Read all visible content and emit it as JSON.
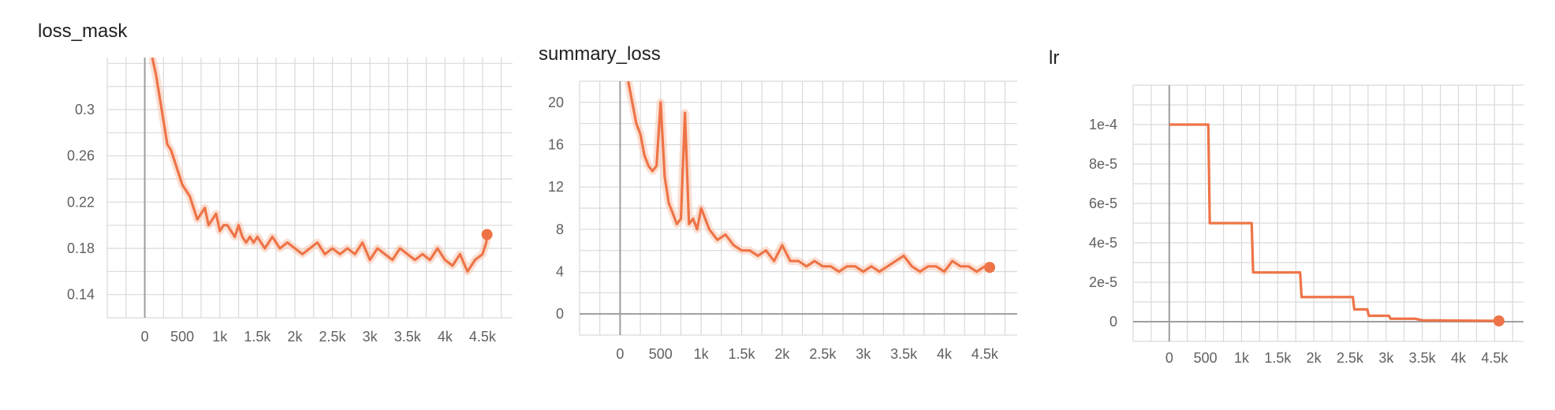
{
  "colors": {
    "line": "#ee7447",
    "line_light": "#f8c7b1",
    "grid": "#d9d9d9",
    "axis": "#9e9e9e",
    "tick_text": "#616161"
  },
  "chart_data": [
    {
      "type": "line",
      "title": "loss_mask",
      "xlabel": "",
      "ylabel": "",
      "xlim": [
        -500,
        4900
      ],
      "ylim": [
        0.12,
        0.345
      ],
      "x_ticks": [
        0,
        500,
        1000,
        1500,
        2000,
        2500,
        3000,
        3500,
        4000,
        4500
      ],
      "x_tick_labels": [
        "0",
        "500",
        "1k",
        "1.5k",
        "2k",
        "2.5k",
        "3k",
        "3.5k",
        "4k",
        "4.5k"
      ],
      "y_ticks": [
        0.14,
        0.18,
        0.22,
        0.26,
        0.3
      ],
      "y_tick_labels": [
        "0.14",
        "0.18",
        "0.22",
        "0.26",
        "0.3"
      ],
      "grid": true,
      "series": [
        {
          "x": [
            100,
            150,
            200,
            250,
            300,
            350,
            400,
            450,
            500,
            550,
            600,
            650,
            700,
            750,
            800,
            850,
            900,
            950,
            1000,
            1050,
            1100,
            1150,
            1200,
            1250,
            1300,
            1350,
            1400,
            1450,
            1500,
            1600,
            1700,
            1800,
            1900,
            2000,
            2100,
            2200,
            2300,
            2400,
            2500,
            2600,
            2700,
            2800,
            2900,
            3000,
            3100,
            3200,
            3300,
            3400,
            3500,
            3600,
            3700,
            3800,
            3900,
            4000,
            4100,
            4200,
            4300,
            4400,
            4500,
            4550,
            4560
          ],
          "values": [
            0.345,
            0.33,
            0.31,
            0.29,
            0.27,
            0.265,
            0.255,
            0.245,
            0.235,
            0.23,
            0.225,
            0.215,
            0.205,
            0.21,
            0.215,
            0.2,
            0.205,
            0.21,
            0.195,
            0.2,
            0.2,
            0.195,
            0.19,
            0.2,
            0.19,
            0.185,
            0.19,
            0.185,
            0.19,
            0.18,
            0.19,
            0.18,
            0.185,
            0.18,
            0.175,
            0.18,
            0.185,
            0.175,
            0.18,
            0.175,
            0.18,
            0.175,
            0.185,
            0.17,
            0.18,
            0.175,
            0.17,
            0.18,
            0.175,
            0.17,
            0.175,
            0.17,
            0.18,
            0.17,
            0.165,
            0.175,
            0.16,
            0.17,
            0.175,
            0.185,
            0.192
          ]
        }
      ]
    },
    {
      "type": "line",
      "title": "summary_loss",
      "xlabel": "",
      "ylabel": "",
      "xlim": [
        -500,
        4900
      ],
      "ylim": [
        -2,
        22
      ],
      "x_ticks": [
        0,
        500,
        1000,
        1500,
        2000,
        2500,
        3000,
        3500,
        4000,
        4500
      ],
      "x_tick_labels": [
        "0",
        "500",
        "1k",
        "1.5k",
        "2k",
        "2.5k",
        "3k",
        "3.5k",
        "4k",
        "4.5k"
      ],
      "y_ticks": [
        0,
        4,
        8,
        12,
        16,
        20
      ],
      "y_tick_labels": [
        "0",
        "4",
        "8",
        "12",
        "16",
        "20"
      ],
      "grid": true,
      "series": [
        {
          "x": [
            100,
            150,
            200,
            250,
            300,
            350,
            400,
            450,
            500,
            550,
            600,
            650,
            700,
            750,
            800,
            850,
            900,
            950,
            1000,
            1100,
            1200,
            1300,
            1400,
            1500,
            1600,
            1700,
            1800,
            1900,
            2000,
            2100,
            2200,
            2300,
            2400,
            2500,
            2600,
            2700,
            2800,
            2900,
            3000,
            3100,
            3200,
            3300,
            3400,
            3500,
            3600,
            3700,
            3800,
            3900,
            4000,
            4100,
            4200,
            4300,
            4400,
            4500,
            4560
          ],
          "values": [
            22,
            20,
            18,
            17,
            15,
            14,
            13.5,
            14,
            20,
            13,
            10.5,
            9.5,
            8.5,
            9,
            19,
            8.5,
            9,
            8,
            10,
            8,
            7,
            7.5,
            6.5,
            6,
            6,
            5.5,
            6,
            5,
            6.5,
            5,
            5,
            4.5,
            5,
            4.5,
            4.5,
            4,
            4.5,
            4.5,
            4,
            4.5,
            4,
            4.5,
            5,
            5.5,
            4.5,
            4,
            4.5,
            4.5,
            4,
            5,
            4.5,
            4.5,
            4,
            4.5,
            4.4
          ]
        }
      ]
    },
    {
      "type": "line",
      "title": "lr",
      "xlabel": "",
      "ylabel": "",
      "xlim": [
        -500,
        4900
      ],
      "ylim": [
        -1e-05,
        0.00012
      ],
      "x_ticks": [
        0,
        500,
        1000,
        1500,
        2000,
        2500,
        3000,
        3500,
        4000,
        4500
      ],
      "x_tick_labels": [
        "0",
        "500",
        "1k",
        "1.5k",
        "2k",
        "2.5k",
        "3k",
        "3.5k",
        "4k",
        "4.5k"
      ],
      "y_ticks": [
        0,
        2e-05,
        4e-05,
        6e-05,
        8e-05,
        0.0001
      ],
      "y_tick_labels": [
        "0",
        "2e-5",
        "4e-5",
        "6e-5",
        "8e-5",
        "1e-4"
      ],
      "grid": true,
      "series": [
        {
          "x": [
            0,
            540,
            560,
            1140,
            1160,
            1810,
            1830,
            2540,
            2560,
            2740,
            2760,
            3040,
            3060,
            3400,
            3500,
            4560
          ],
          "values": [
            0.0001,
            0.0001,
            5e-05,
            5e-05,
            2.5e-05,
            2.5e-05,
            1.25e-05,
            1.25e-05,
            6.25e-06,
            6.25e-06,
            3e-06,
            3e-06,
            1.5e-06,
            1.5e-06,
            7e-07,
            4e-07
          ]
        }
      ]
    }
  ]
}
